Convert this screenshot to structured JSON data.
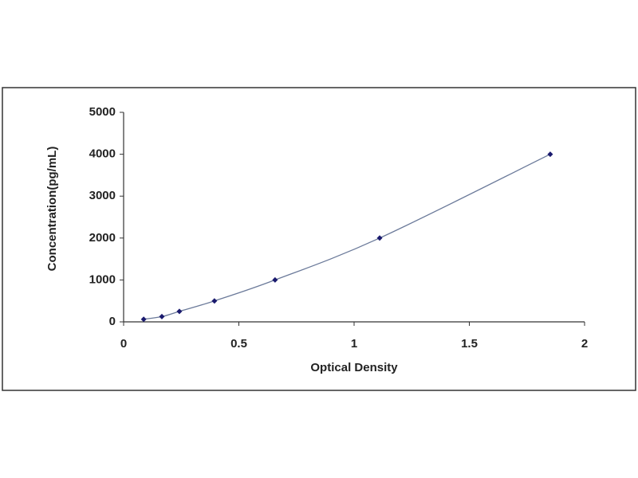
{
  "chart_data": {
    "type": "scatter",
    "x_label": "Optical Density",
    "y_label": "Concentration(pg/mL)",
    "series": [
      {
        "color": "#1a1a6e",
        "line_color": "#6b7a9a",
        "x": [
          0.087,
          0.166,
          0.242,
          0.394,
          0.657,
          1.111,
          1.851
        ],
        "values": [
          62.5,
          125,
          250,
          500,
          1000,
          2000,
          4000
        ]
      }
    ],
    "xlim": [
      0,
      2
    ],
    "xticks": [
      0,
      0.5,
      1,
      1.5,
      2
    ],
    "ylim": [
      0,
      5000
    ],
    "yticks": [
      0,
      1000,
      2000,
      3000,
      4000,
      5000
    ],
    "grid": false
  }
}
